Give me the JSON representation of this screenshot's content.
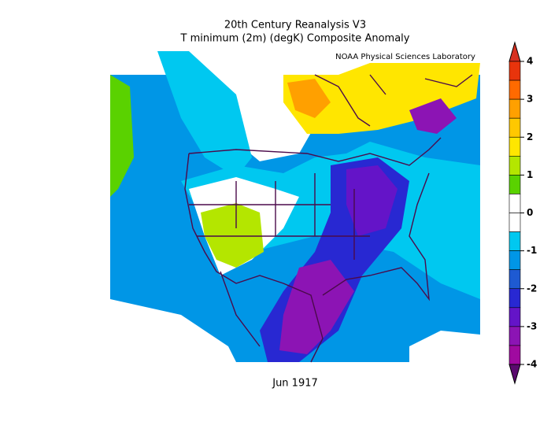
{
  "header": {
    "title": "20th Century Reanalysis V3",
    "subtitle": "T minimum (2m) (degK) Composite Anomaly",
    "credit": "NOAA Physical Sciences Laboratory"
  },
  "map": {
    "date_label": "Jun 1917"
  },
  "colorbar": {
    "ticks": [
      4,
      3,
      2,
      1,
      0,
      -1,
      -2,
      -3,
      -4
    ],
    "colors": [
      "#d7301f",
      "#e8340c",
      "#ff6a00",
      "#ffa000",
      "#ffc800",
      "#ffe600",
      "#b4e600",
      "#5ad200",
      "#ffffff",
      "#ffffff",
      "#00c8f0",
      "#0096e6",
      "#1e5ad2",
      "#2828d2",
      "#6414c8",
      "#8c14b4",
      "#a00aa0",
      "#5a0a6e"
    ]
  }
}
